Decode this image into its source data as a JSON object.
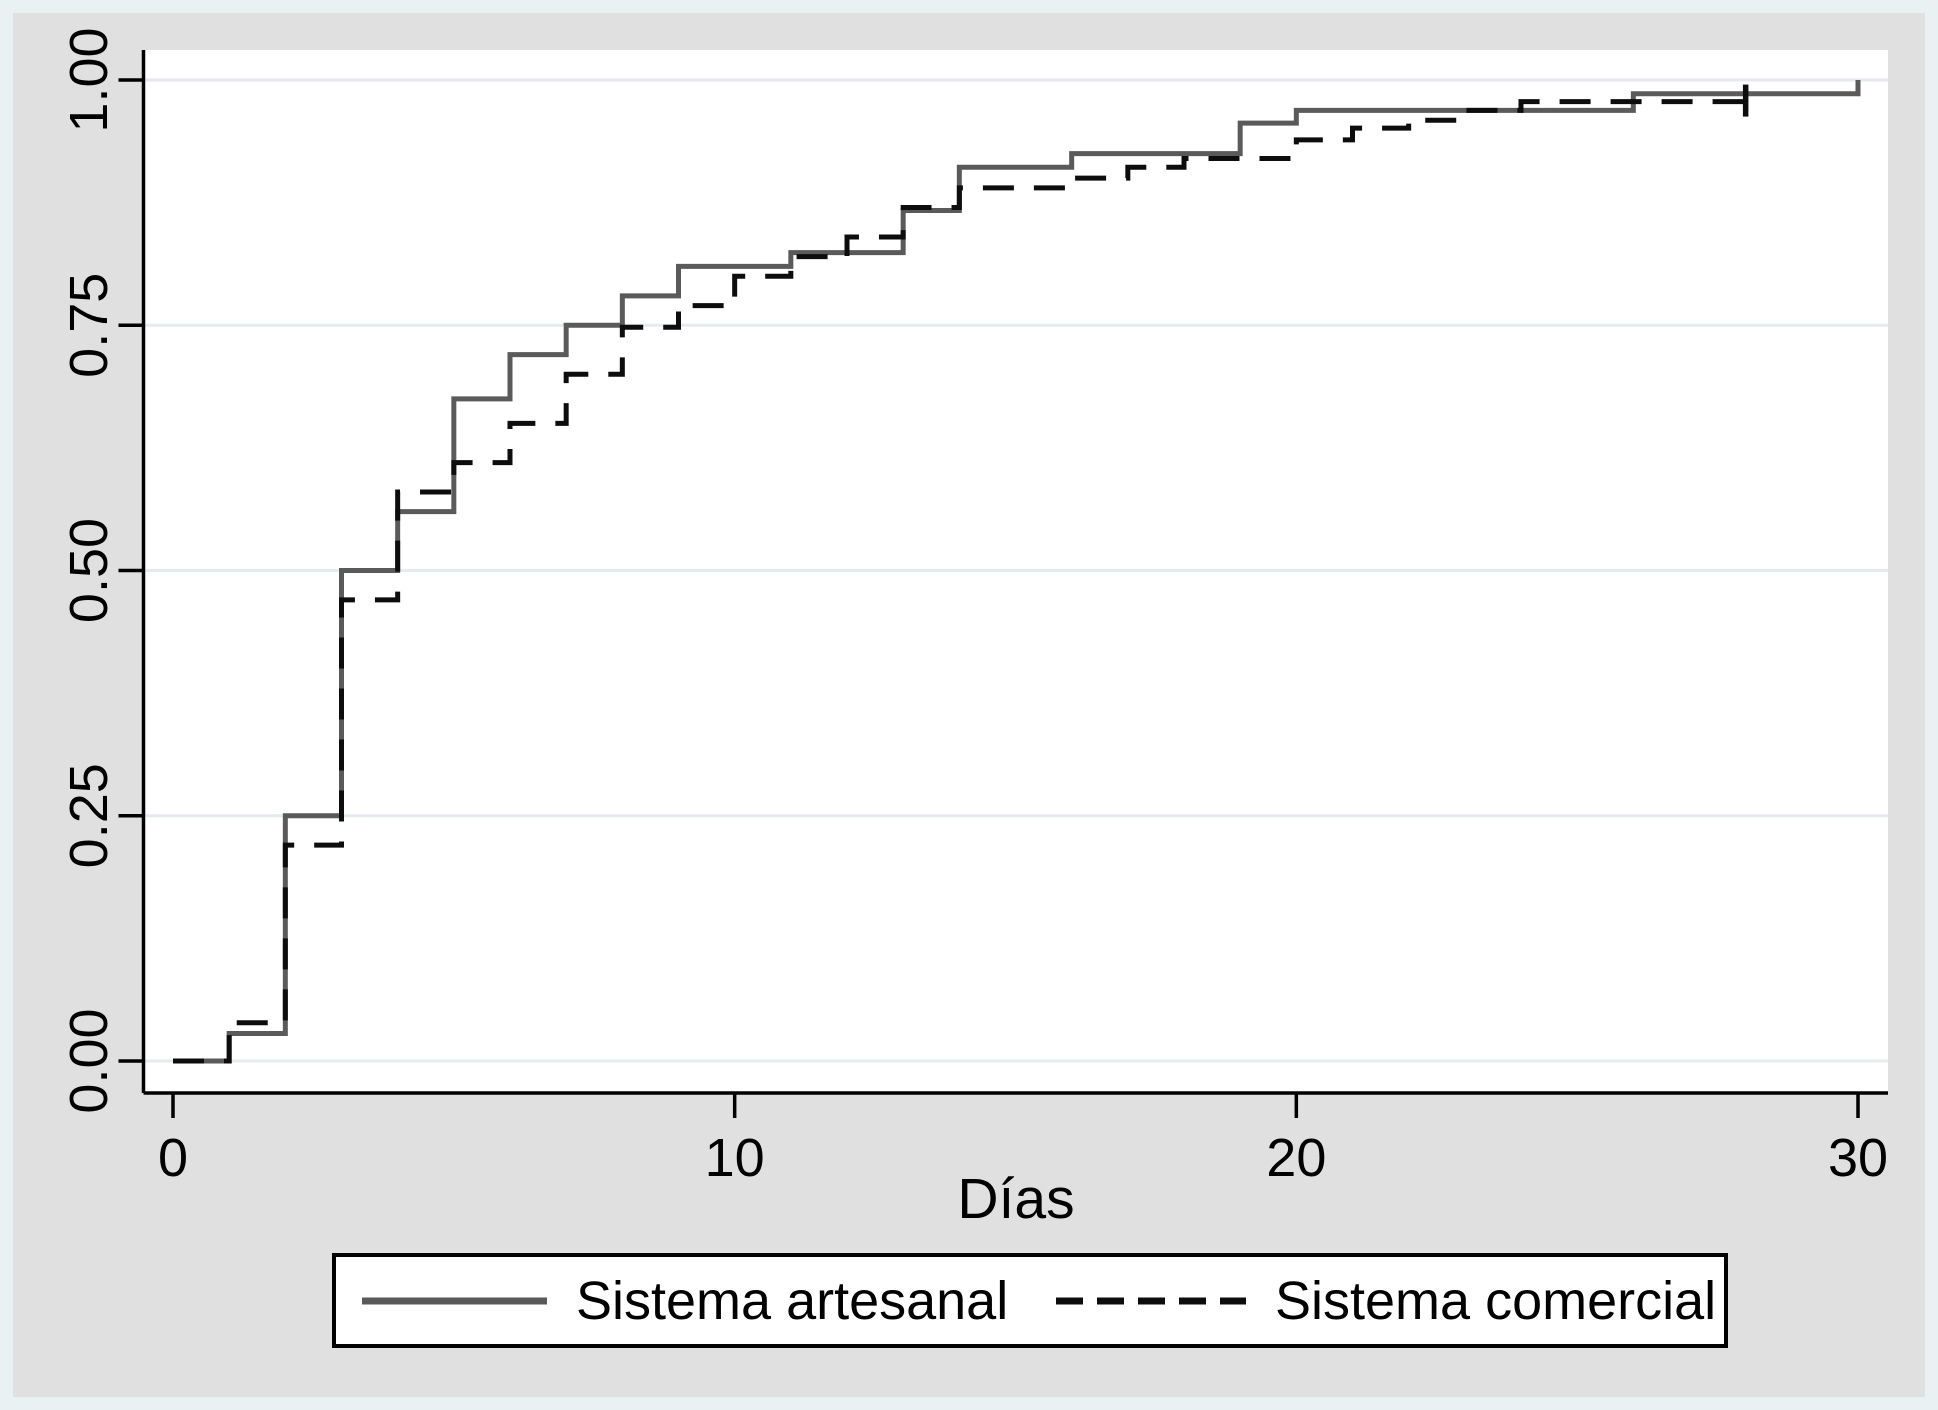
{
  "chart_data": {
    "type": "line",
    "subtype": "kaplan-meier-failure-step",
    "title": "",
    "xlabel": "Días",
    "ylabel": "",
    "xlim": [
      0,
      30
    ],
    "ylim": [
      0,
      1
    ],
    "grid": "horizontal",
    "legend_position": "bottom",
    "x_ticks": [
      0,
      10,
      20,
      30
    ],
    "y_ticks": [
      {
        "value": 0.0,
        "label": "0.00"
      },
      {
        "value": 0.25,
        "label": "0.25"
      },
      {
        "value": 0.5,
        "label": "0.50"
      },
      {
        "value": 0.75,
        "label": "0.75"
      },
      {
        "value": 1.0,
        "label": "1.00"
      }
    ],
    "series": [
      {
        "name": "Sistema artesanal",
        "style": "solid",
        "color": "#5a5a5a",
        "step": "post",
        "end_x": 30,
        "censor_ticks": [],
        "points": [
          [
            0,
            0.0
          ],
          [
            1,
            0.028
          ],
          [
            2,
            0.25
          ],
          [
            3,
            0.5
          ],
          [
            4,
            0.56
          ],
          [
            5,
            0.675
          ],
          [
            6,
            0.72
          ],
          [
            7,
            0.75
          ],
          [
            8,
            0.78
          ],
          [
            9,
            0.81
          ],
          [
            11,
            0.824
          ],
          [
            13,
            0.867
          ],
          [
            14,
            0.911
          ],
          [
            16,
            0.925
          ],
          [
            19,
            0.956
          ],
          [
            20,
            0.969
          ],
          [
            26,
            0.986
          ],
          [
            30,
            1.0
          ]
        ]
      },
      {
        "name": "Sistema comercial",
        "style": "dashed",
        "color": "#0d0d0d",
        "step": "post",
        "end_x": 28,
        "censor_ticks": [
          [
            28,
            0.978
          ]
        ],
        "points": [
          [
            0,
            0.0
          ],
          [
            1,
            0.039
          ],
          [
            2,
            0.22
          ],
          [
            3,
            0.47
          ],
          [
            4,
            0.58
          ],
          [
            5,
            0.61
          ],
          [
            6,
            0.65
          ],
          [
            7,
            0.7
          ],
          [
            8,
            0.748
          ],
          [
            9,
            0.77
          ],
          [
            10,
            0.8
          ],
          [
            11,
            0.82
          ],
          [
            12,
            0.84
          ],
          [
            13,
            0.87
          ],
          [
            14,
            0.89
          ],
          [
            16,
            0.9
          ],
          [
            17,
            0.911
          ],
          [
            18,
            0.92
          ],
          [
            20,
            0.939
          ],
          [
            21,
            0.951
          ],
          [
            22,
            0.959
          ],
          [
            23,
            0.969
          ],
          [
            24,
            0.978
          ]
        ]
      }
    ]
  },
  "colors": {
    "outer_frame": "#eaf1f2",
    "graph_background": "#e0e0e0",
    "plot_background": "#ffffff",
    "gridline": "#e2ecee",
    "axis": "#000000",
    "series_artesanal": "#5a5a5a",
    "series_comercial": "#0d0d0d"
  },
  "legend": {
    "artesanal_label": "Sistema artesanal",
    "comercial_label": "Sistema comercial"
  }
}
